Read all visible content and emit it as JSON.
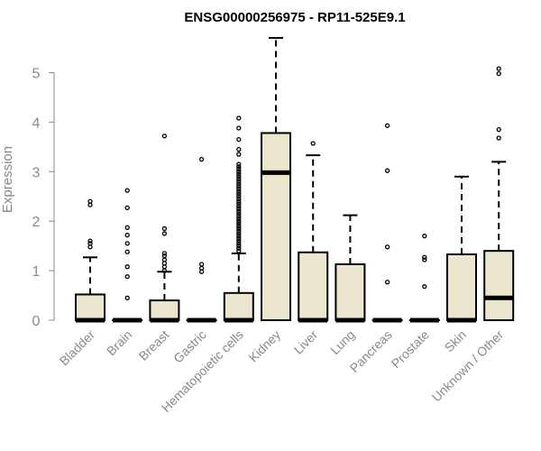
{
  "chart_data": {
    "type": "box",
    "title": "ENSG00000256975 - RP11-525E9.1",
    "xlabel": "",
    "ylabel": "Expression",
    "ylim": [
      0,
      5.8
    ],
    "yticks": [
      0,
      1,
      2,
      3,
      4,
      5
    ],
    "colors": {
      "box_fill": "#ede6cf",
      "stroke": "#000000",
      "axis_text": "#888888"
    },
    "categories": [
      "Bladder",
      "Brain",
      "Breast",
      "Gastric",
      "Hematopoietic cells",
      "Kidney",
      "Liver",
      "Lung",
      "Pancreas",
      "Prostate",
      "Skin",
      "Unknown / Other"
    ],
    "boxes": [
      {
        "category": "Bladder",
        "q1": 0,
        "median": 0,
        "q3": 0.52,
        "whisker_low": 0,
        "whisker_high": 1.27,
        "outliers": [
          1.48,
          1.55,
          1.6,
          2.33,
          2.4
        ]
      },
      {
        "category": "Brain",
        "q1": 0,
        "median": 0,
        "q3": 0,
        "whisker_low": 0,
        "whisker_high": 0,
        "outliers": [
          0.45,
          0.88,
          1.08,
          1.38,
          1.55,
          1.72,
          1.87,
          2.27,
          2.62
        ]
      },
      {
        "category": "Breast",
        "q1": 0,
        "median": 0,
        "q3": 0.4,
        "whisker_low": 0,
        "whisker_high": 0.98,
        "outliers": [
          1.0,
          1.08,
          1.15,
          1.22,
          1.3,
          1.35,
          1.75,
          1.85,
          3.72
        ]
      },
      {
        "category": "Gastric",
        "q1": 0,
        "median": 0,
        "q3": 0,
        "whisker_low": 0,
        "whisker_high": 0,
        "outliers": [
          0.98,
          1.05,
          1.13,
          3.25
        ]
      },
      {
        "category": "Hematopoietic cells",
        "q1": 0,
        "median": 0,
        "q3": 0.55,
        "whisker_low": 0,
        "whisker_high": 1.35,
        "outliers": [
          1.4,
          1.45,
          1.5,
          1.55,
          1.6,
          1.65,
          1.7,
          1.75,
          1.8,
          1.85,
          1.9,
          1.95,
          2.0,
          2.05,
          2.1,
          2.15,
          2.2,
          2.25,
          2.3,
          2.35,
          2.4,
          2.45,
          2.5,
          2.55,
          2.6,
          2.65,
          2.7,
          2.75,
          2.8,
          2.85,
          2.9,
          2.95,
          3.0,
          3.05,
          3.1,
          3.15,
          3.35,
          3.45,
          3.65,
          3.88,
          4.08
        ]
      },
      {
        "category": "Kidney",
        "q1": 0,
        "median": 2.98,
        "q3": 3.78,
        "whisker_low": 0,
        "whisker_high": 5.7,
        "outliers": []
      },
      {
        "category": "Liver",
        "q1": 0,
        "median": 0,
        "q3": 1.37,
        "whisker_low": 0,
        "whisker_high": 3.33,
        "outliers": [
          3.57
        ]
      },
      {
        "category": "Lung",
        "q1": 0,
        "median": 0,
        "q3": 1.13,
        "whisker_low": 0,
        "whisker_high": 2.12,
        "outliers": []
      },
      {
        "category": "Pancreas",
        "q1": 0,
        "median": 0,
        "q3": 0,
        "whisker_low": 0,
        "whisker_high": 0,
        "outliers": [
          0.77,
          1.48,
          3.02,
          3.93
        ]
      },
      {
        "category": "Prostate",
        "q1": 0,
        "median": 0,
        "q3": 0,
        "whisker_low": 0,
        "whisker_high": 0,
        "outliers": [
          0.68,
          1.22,
          1.27,
          1.7
        ]
      },
      {
        "category": "Skin",
        "q1": 0,
        "median": 0,
        "q3": 1.33,
        "whisker_low": 0,
        "whisker_high": 2.9,
        "outliers": []
      },
      {
        "category": "Unknown / Other",
        "q1": 0,
        "median": 0.45,
        "q3": 1.4,
        "whisker_low": 0,
        "whisker_high": 3.2,
        "outliers": [
          3.68,
          3.85,
          4.98,
          5.08
        ]
      }
    ]
  }
}
